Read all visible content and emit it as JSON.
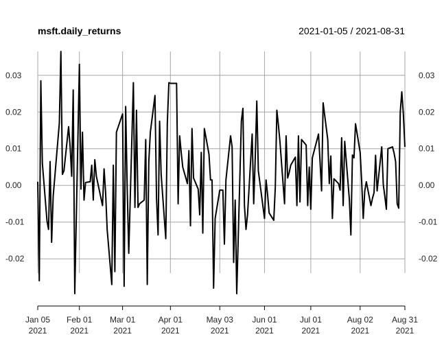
{
  "chart_data": {
    "type": "line",
    "title": "msft.daily_returns",
    "date_range": "2021-01-05 / 2021-08-31",
    "xlabel": "",
    "ylabel": "",
    "ylim": [
      -0.0295,
      0.0365
    ],
    "xlim": [
      "2021-01-05",
      "2021-08-31"
    ],
    "grid": true,
    "yticks": [
      {
        "value": 0.03,
        "label": "0.03"
      },
      {
        "value": 0.02,
        "label": "0.02"
      },
      {
        "value": 0.01,
        "label": "0.01"
      },
      {
        "value": 0.0,
        "label": "0.00"
      },
      {
        "value": -0.01,
        "label": "-0.01"
      },
      {
        "value": -0.02,
        "label": "-0.02"
      }
    ],
    "xticks": [
      {
        "date": "2021-01-05",
        "label": "Jan 05",
        "year": "2021"
      },
      {
        "date": "2021-02-01",
        "label": "Feb 01",
        "year": "2021"
      },
      {
        "date": "2021-03-01",
        "label": "Mar 01",
        "year": "2021"
      },
      {
        "date": "2021-04-01",
        "label": "Apr 01",
        "year": "2021"
      },
      {
        "date": "2021-05-03",
        "label": "May 03",
        "year": "2021"
      },
      {
        "date": "2021-06-01",
        "label": "Jun 01",
        "year": "2021"
      },
      {
        "date": "2021-07-01",
        "label": "Jul 01",
        "year": "2021"
      },
      {
        "date": "2021-08-02",
        "label": "Aug 02",
        "year": "2021"
      },
      {
        "date": "2021-08-31",
        "label": "Aug 31",
        "year": "2021"
      }
    ],
    "series": [
      {
        "name": "",
        "color": "#000000",
        "points": [
          [
            "2021-01-05",
            0.001
          ],
          [
            "2021-01-06",
            -0.026
          ],
          [
            "2021-01-07",
            0.0285
          ],
          [
            "2021-01-08",
            0.006
          ],
          [
            "2021-01-11",
            -0.0097
          ],
          [
            "2021-01-12",
            -0.012
          ],
          [
            "2021-01-13",
            0.0065
          ],
          [
            "2021-01-14",
            -0.0155
          ],
          [
            "2021-01-15",
            -0.003
          ],
          [
            "2021-01-19",
            0.017
          ],
          [
            "2021-01-20",
            0.0365
          ],
          [
            "2021-01-21",
            0.003
          ],
          [
            "2021-01-22",
            0.004
          ],
          [
            "2021-01-25",
            0.016
          ],
          [
            "2021-01-26",
            0.0105
          ],
          [
            "2021-01-27",
            0.0025
          ],
          [
            "2021-01-28",
            0.026
          ],
          [
            "2021-01-29",
            -0.0295
          ],
          [
            "2021-02-01",
            0.033
          ],
          [
            "2021-02-02",
            -0.001
          ],
          [
            "2021-02-03",
            0.0145
          ],
          [
            "2021-02-04",
            -0.004
          ],
          [
            "2021-02-05",
            0.0008
          ],
          [
            "2021-02-08",
            0.001
          ],
          [
            "2021-02-09",
            0.0055
          ],
          [
            "2021-02-10",
            -0.004
          ],
          [
            "2021-02-11",
            0.007
          ],
          [
            "2021-02-12",
            0.0025
          ],
          [
            "2021-02-16",
            -0.0055
          ],
          [
            "2021-02-17",
            0.0045
          ],
          [
            "2021-02-18",
            -0.002
          ],
          [
            "2021-02-19",
            -0.012
          ],
          [
            "2021-02-22",
            -0.027
          ],
          [
            "2021-02-23",
            0.0055
          ],
          [
            "2021-02-24",
            -0.0235
          ],
          [
            "2021-02-25",
            0.0145
          ],
          [
            "2021-03-01",
            0.0195
          ],
          [
            "2021-03-02",
            -0.0275
          ],
          [
            "2021-03-03",
            0.0215
          ],
          [
            "2021-03-04",
            -0.001
          ],
          [
            "2021-03-05",
            -0.0185
          ],
          [
            "2021-03-08",
            0.028
          ],
          [
            "2021-03-09",
            -0.006
          ],
          [
            "2021-03-10",
            0.0205
          ],
          [
            "2021-03-11",
            -0.006
          ],
          [
            "2021-03-12",
            -0.005
          ],
          [
            "2021-03-15",
            -0.004
          ],
          [
            "2021-03-16",
            0.0125
          ],
          [
            "2021-03-17",
            -0.027
          ],
          [
            "2021-03-18",
            0.0065
          ],
          [
            "2021-03-19",
            0.0145
          ],
          [
            "2021-03-22",
            0.0245
          ],
          [
            "2021-03-23",
            -0.0035
          ],
          [
            "2021-03-24",
            -0.0135
          ],
          [
            "2021-03-25",
            0.0175
          ],
          [
            "2021-03-26",
            0.003
          ],
          [
            "2021-03-29",
            -0.0145
          ],
          [
            "2021-03-30",
            0.017
          ],
          [
            "2021-03-31",
            0.028
          ],
          [
            "2021-04-01",
            0.0278
          ],
          [
            "2021-04-05",
            0.0278
          ],
          [
            "2021-04-06",
            -0.005
          ],
          [
            "2021-04-07",
            0.0135
          ],
          [
            "2021-04-08",
            0.009
          ],
          [
            "2021-04-09",
            0.005
          ],
          [
            "2021-04-12",
            0.0005
          ],
          [
            "2021-04-13",
            0.0095
          ],
          [
            "2021-04-14",
            -0.011
          ],
          [
            "2021-04-15",
            0.0155
          ],
          [
            "2021-04-16",
            0.002
          ],
          [
            "2021-04-19",
            -0.001
          ],
          [
            "2021-04-20",
            -0.008
          ],
          [
            "2021-04-21",
            0.009
          ],
          [
            "2021-04-22",
            -0.013
          ],
          [
            "2021-04-23",
            0.0155
          ],
          [
            "2021-04-26",
            0.0085
          ],
          [
            "2021-04-27",
            0.0015
          ],
          [
            "2021-04-28",
            0.0015
          ],
          [
            "2021-04-29",
            -0.028
          ],
          [
            "2021-04-30",
            -0.009
          ],
          [
            "2021-05-03",
            -0.0013
          ],
          [
            "2021-05-04",
            -0.0013
          ],
          [
            "2021-05-05",
            -0.0013
          ],
          [
            "2021-05-06",
            -0.016
          ],
          [
            "2021-05-07",
            0.0015
          ],
          [
            "2021-05-10",
            0.0135
          ],
          [
            "2021-05-11",
            0.0105
          ],
          [
            "2021-05-12",
            -0.021
          ],
          [
            "2021-05-13",
            -0.004
          ],
          [
            "2021-05-14",
            -0.0295
          ],
          [
            "2021-05-17",
            0.0175
          ],
          [
            "2021-05-18",
            0.021
          ],
          [
            "2021-05-19",
            -0.0055
          ],
          [
            "2021-05-20",
            -0.012
          ],
          [
            "2021-05-21",
            -0.008
          ],
          [
            "2021-05-24",
            0.014
          ],
          [
            "2021-05-25",
            -0.005
          ],
          [
            "2021-05-26",
            0.0075
          ],
          [
            "2021-05-27",
            0.023
          ],
          [
            "2021-05-28",
            0.004
          ],
          [
            "2021-06-01",
            -0.009
          ],
          [
            "2021-06-02",
            0.0015
          ],
          [
            "2021-06-03",
            -0.0025
          ],
          [
            "2021-06-04",
            -0.0075
          ],
          [
            "2021-06-07",
            -0.0095
          ],
          [
            "2021-06-08",
            -0.0005
          ],
          [
            "2021-06-09",
            0.0205
          ],
          [
            "2021-06-10",
            0.0165
          ],
          [
            "2021-06-11",
            0.012
          ],
          [
            "2021-06-14",
            -0.005
          ],
          [
            "2021-06-15",
            0.0135
          ],
          [
            "2021-06-16",
            0.002
          ],
          [
            "2021-06-17",
            0.0035
          ],
          [
            "2021-06-18",
            0.0055
          ],
          [
            "2021-06-21",
            0.0077
          ],
          [
            "2021-06-22",
            -0.0055
          ],
          [
            "2021-06-23",
            0.0135
          ],
          [
            "2021-06-24",
            -0.0045
          ],
          [
            "2021-06-25",
            0.0125
          ],
          [
            "2021-06-28",
            0.011
          ],
          [
            "2021-06-29",
            -0.0055
          ],
          [
            "2021-06-30",
            0.005
          ],
          [
            "2021-07-01",
            -0.0065
          ],
          [
            "2021-07-02",
            0.0075
          ],
          [
            "2021-07-06",
            0.014
          ],
          [
            "2021-07-07",
            0.0065
          ],
          [
            "2021-07-08",
            -0.0015
          ],
          [
            "2021-07-09",
            0.0225
          ],
          [
            "2021-07-12",
            0.0125
          ],
          [
            "2021-07-13",
            0.0005
          ],
          [
            "2021-07-14",
            0.008
          ],
          [
            "2021-07-15",
            -0.009
          ],
          [
            "2021-07-16",
            0.0018
          ],
          [
            "2021-07-19",
            0.0005
          ],
          [
            "2021-07-20",
            -0.0013
          ],
          [
            "2021-07-21",
            0.013
          ],
          [
            "2021-07-22",
            -0.0055
          ],
          [
            "2021-07-23",
            0.012
          ],
          [
            "2021-07-26",
            -0.0038
          ],
          [
            "2021-07-27",
            -0.0135
          ],
          [
            "2021-07-28",
            0.0083
          ],
          [
            "2021-07-29",
            0.0075
          ],
          [
            "2021-07-30",
            0.0168
          ],
          [
            "2021-08-02",
            0.009
          ],
          [
            "2021-08-03",
            0.001
          ],
          [
            "2021-08-04",
            -0.009
          ],
          [
            "2021-08-05",
            -0.0015
          ],
          [
            "2021-08-06",
            0.001
          ],
          [
            "2021-08-09",
            -0.0055
          ],
          [
            "2021-08-10",
            -0.0035
          ],
          [
            "2021-08-11",
            -0.002
          ],
          [
            "2021-08-12",
            0.0082
          ],
          [
            "2021-08-13",
            -0.0015
          ],
          [
            "2021-08-16",
            0.0105
          ],
          [
            "2021-08-17",
            0.0002
          ],
          [
            "2021-08-18",
            -0.003
          ],
          [
            "2021-08-19",
            -0.0065
          ],
          [
            "2021-08-20",
            0.01
          ],
          [
            "2021-08-23",
            0.0105
          ],
          [
            "2021-08-24",
            0.0088
          ],
          [
            "2021-08-25",
            0.0065
          ],
          [
            "2021-08-26",
            -0.005
          ],
          [
            "2021-08-27",
            -0.0062
          ],
          [
            "2021-08-28",
            0.02
          ],
          [
            "2021-08-29",
            0.0255
          ],
          [
            "2021-08-30",
            0.0195
          ],
          [
            "2021-08-31",
            0.0105
          ]
        ]
      }
    ]
  }
}
